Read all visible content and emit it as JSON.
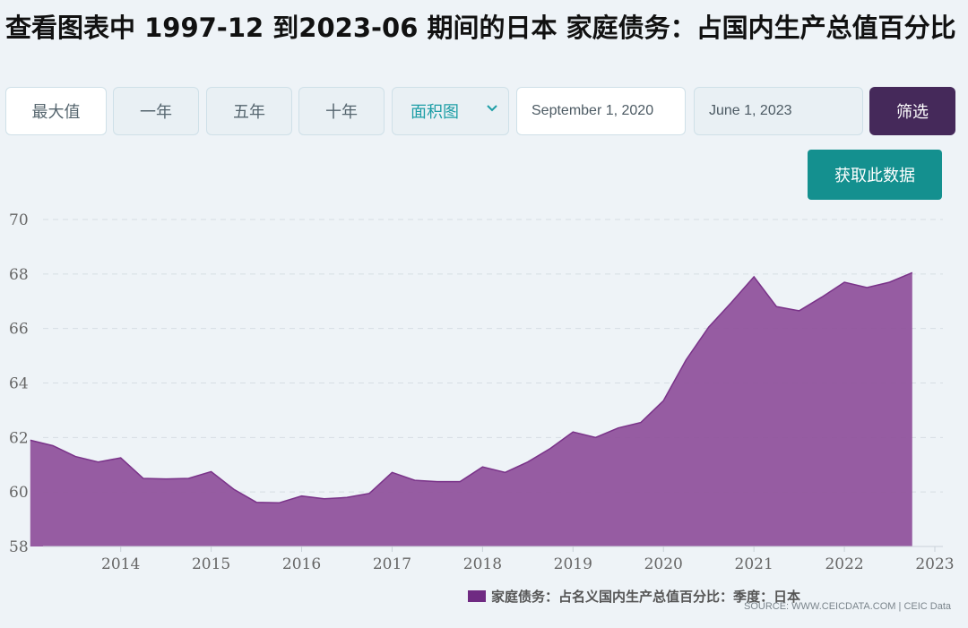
{
  "title": "查看图表中 1997-12 到2023-06 期间的日本 家庭债务：占国内生产总值百分比",
  "controls": {
    "max_label": "最大值",
    "one_year_label": "一年",
    "five_year_label": "五年",
    "ten_year_label": "十年",
    "chart_type_selected": "面积图",
    "start_date": "September 1, 2020",
    "end_date": "June 1, 2023",
    "filter_label": "筛选",
    "get_data_label": "获取此数据"
  },
  "source_text": "SOURCE: WWW.CEICDATA.COM | CEIC Data",
  "colors": {
    "area_fill": "#8e4f9a",
    "area_line": "#7a3389",
    "filter_button": "#45295a",
    "get_data_button": "#14908f"
  },
  "chart_data": {
    "type": "area",
    "xlabel": "",
    "ylabel": "",
    "ylim": [
      58,
      70
    ],
    "y_ticks": [
      58,
      60,
      62,
      64,
      66,
      68,
      70
    ],
    "x_tick_labels": [
      "2014",
      "2015",
      "2016",
      "2017",
      "2018",
      "2019",
      "2020",
      "2021",
      "2022",
      "2023"
    ],
    "x_range": [
      2013.25,
      2023.0
    ],
    "grid": true,
    "legend_position": "bottom-right",
    "series": [
      {
        "name": "家庭债务：占名义国内生产总值百分比：季度：日本",
        "x": [
          "2013-03",
          "2013-06",
          "2013-09",
          "2013-12",
          "2014-03",
          "2014-06",
          "2014-09",
          "2014-12",
          "2015-03",
          "2015-06",
          "2015-09",
          "2015-12",
          "2016-03",
          "2016-06",
          "2016-09",
          "2016-12",
          "2017-03",
          "2017-06",
          "2017-09",
          "2017-12",
          "2018-03",
          "2018-06",
          "2018-09",
          "2018-12",
          "2019-03",
          "2019-06",
          "2019-09",
          "2019-12",
          "2020-03",
          "2020-06",
          "2020-09",
          "2020-12",
          "2021-03",
          "2021-06",
          "2021-09",
          "2021-12",
          "2022-03",
          "2022-06",
          "2022-09",
          "2022-12"
        ],
        "values": [
          61.9,
          61.7,
          61.3,
          61.1,
          61.25,
          60.5,
          60.48,
          60.5,
          60.75,
          60.1,
          59.62,
          59.6,
          59.85,
          59.75,
          59.8,
          59.95,
          60.72,
          60.43,
          60.38,
          60.38,
          60.92,
          60.72,
          61.1,
          61.6,
          62.2,
          62.0,
          62.35,
          62.55,
          63.35,
          64.85,
          66.05,
          66.95,
          67.9,
          66.8,
          66.65,
          67.15,
          67.7,
          67.5,
          67.7,
          68.05
        ]
      }
    ]
  }
}
